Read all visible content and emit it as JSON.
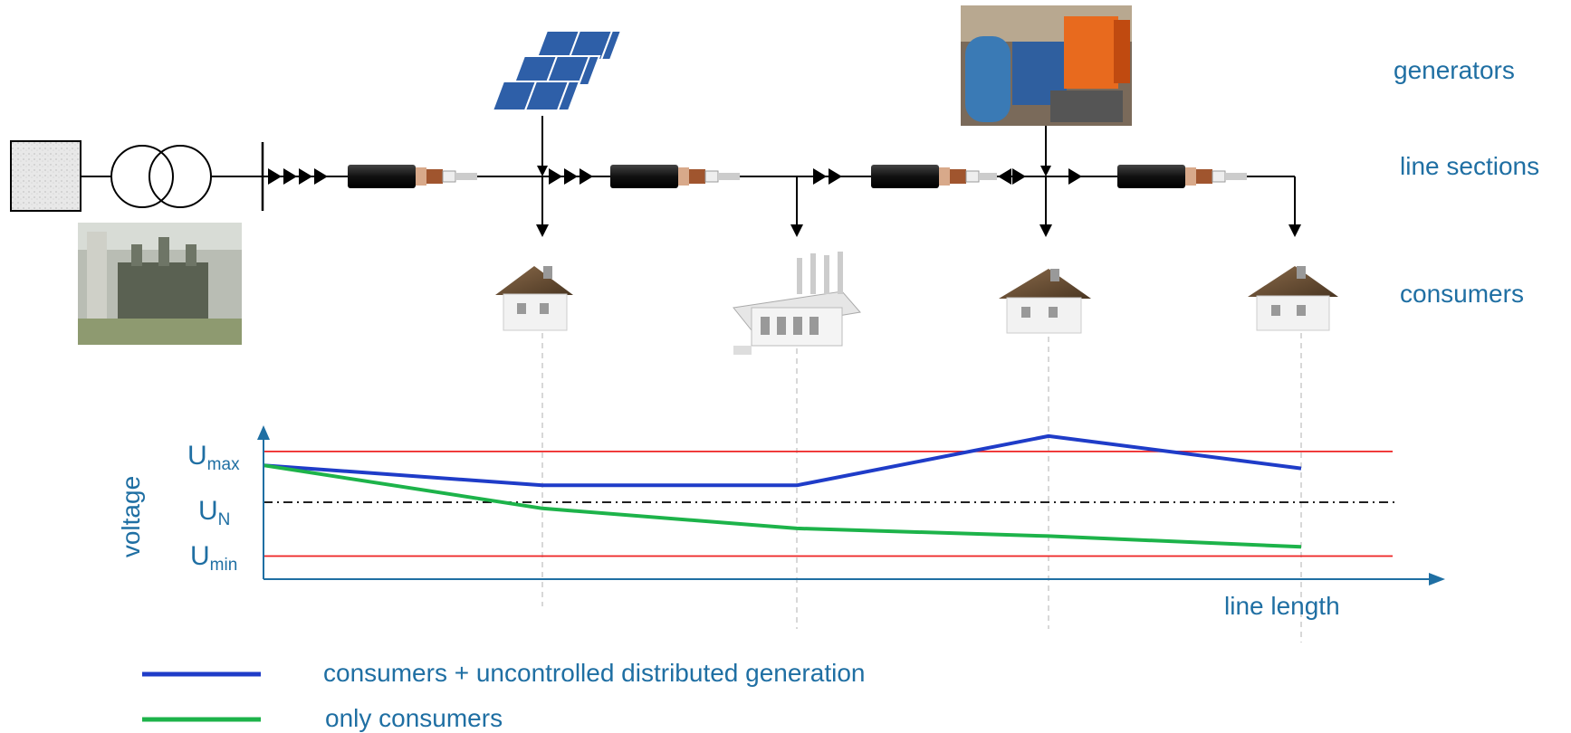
{
  "labels": {
    "generators": "generators",
    "line_sections": "line sections",
    "consumers": "consumers"
  },
  "chart_data": {
    "type": "line",
    "ylabel": "voltage",
    "xlabel": "line length",
    "reference_lines": [
      {
        "label_main": "U",
        "label_sub": "max",
        "style": "solid",
        "color": "#ee2222"
      },
      {
        "label_main": "U",
        "label_sub": "N",
        "style": "dash-dot",
        "color": "#000000"
      },
      {
        "label_main": "U",
        "label_sub": "min",
        "style": "solid",
        "color": "#ee2222"
      }
    ],
    "series": [
      {
        "name": "consumers +  uncontrolled distributed generation",
        "color": "#1f3cc8",
        "points": [
          {
            "x": 0,
            "y": 0.74
          },
          {
            "x": 1,
            "y": 0.61
          },
          {
            "x": 2,
            "y": 0.61
          },
          {
            "x": 3,
            "y": 0.93
          },
          {
            "x": 4,
            "y": 0.72
          }
        ]
      },
      {
        "name": "only consumers",
        "color": "#1db34a",
        "points": [
          {
            "x": 0,
            "y": 0.74
          },
          {
            "x": 1,
            "y": 0.46
          },
          {
            "x": 2,
            "y": 0.33
          },
          {
            "x": 3,
            "y": 0.28
          },
          {
            "x": 4,
            "y": 0.21
          }
        ]
      }
    ],
    "y_reference_values": {
      "max": 0.83,
      "nominal": 0.5,
      "min": 0.15
    }
  },
  "colors": {
    "text": "#1f6fa3",
    "axis": "#1f6fa3",
    "limit": "#ee2222"
  }
}
